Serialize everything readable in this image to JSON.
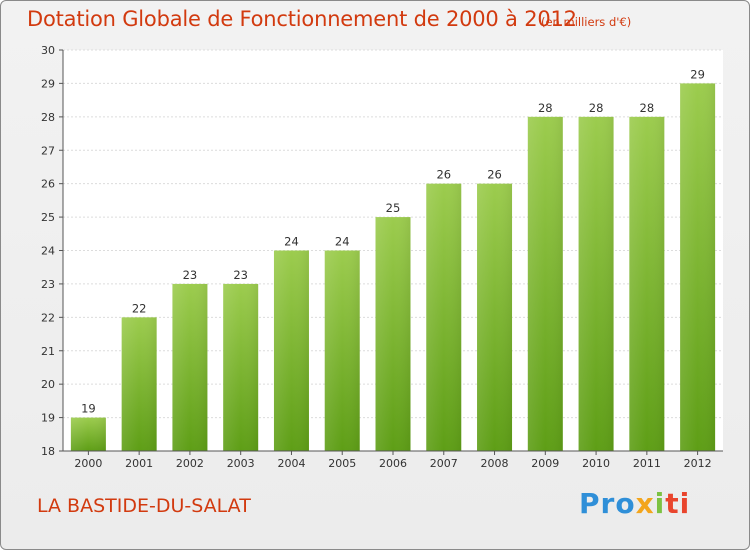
{
  "header": {
    "title": "Dotation Globale de Fonctionnement de 2000 à 2012",
    "subtitle": "(en milliers d'€)"
  },
  "footer": {
    "commune": "LA BASTIDE-DU-SALAT",
    "brand_parts": [
      "Pro",
      "x",
      "i",
      "ti"
    ]
  },
  "colors": {
    "bar_top": "#9ccc4e",
    "bar_bottom": "#5e9e16",
    "title": "#d23a0f"
  },
  "chart_data": {
    "type": "bar",
    "title": "Dotation Globale de Fonctionnement de 2000 à 2012",
    "subtitle": "(en milliers d'€)",
    "xlabel": "",
    "ylabel": "",
    "categories": [
      "2000",
      "2001",
      "2002",
      "2003",
      "2004",
      "2005",
      "2006",
      "2007",
      "2008",
      "2009",
      "2010",
      "2011",
      "2012"
    ],
    "values": [
      19,
      22,
      23,
      23,
      24,
      24,
      25,
      26,
      26,
      28,
      28,
      28,
      29
    ],
    "ylim": [
      18,
      30
    ],
    "yticks": [
      18,
      19,
      20,
      21,
      22,
      23,
      24,
      25,
      26,
      27,
      28,
      29,
      30
    ],
    "grid": true
  }
}
